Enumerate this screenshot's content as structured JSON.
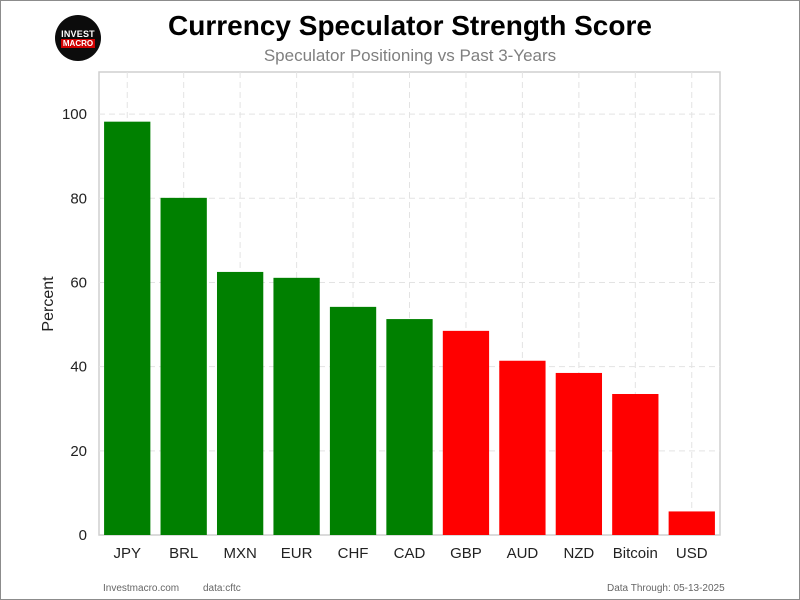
{
  "logo": {
    "line1": "INVEST",
    "line2": "MACRO"
  },
  "chart_data": {
    "type": "bar",
    "title": "Currency Speculator Strength Score",
    "subtitle": "Speculator Positioning vs Past 3-Years",
    "xlabel": "",
    "ylabel": "Percent",
    "categories": [
      "JPY",
      "BRL",
      "MXN",
      "EUR",
      "CHF",
      "CAD",
      "GBP",
      "AUD",
      "NZD",
      "Bitcoin",
      "USD"
    ],
    "values": [
      98.2,
      80.1,
      62.5,
      61.1,
      54.2,
      51.3,
      48.5,
      41.4,
      38.5,
      33.5,
      5.6
    ],
    "bar_colors": [
      "#008000",
      "#008000",
      "#008000",
      "#008000",
      "#008000",
      "#008000",
      "#ff0000",
      "#ff0000",
      "#ff0000",
      "#ff0000",
      "#ff0000"
    ],
    "ylim": [
      0,
      110
    ],
    "yticks": [
      0,
      20,
      40,
      60,
      80,
      100
    ],
    "grid": true
  },
  "footer": {
    "source": "Investmacro.com",
    "data": "data:cftc",
    "date": "Data Through: 05-13-2025"
  }
}
